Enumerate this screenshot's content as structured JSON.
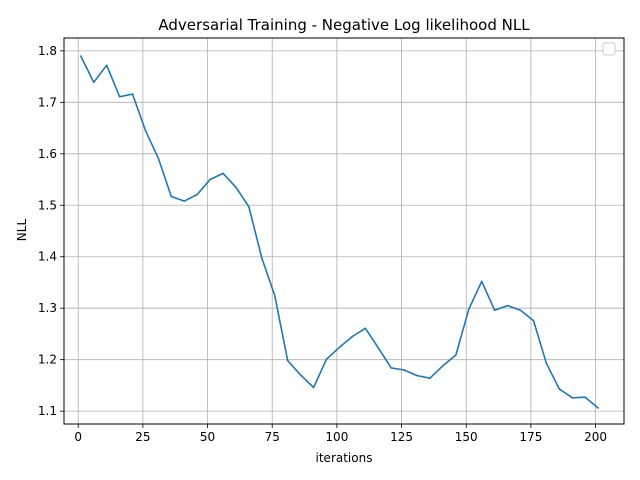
{
  "chart_data": {
    "type": "line",
    "title": "Adversarial Training - Negative Log likelihood NLL",
    "xlabel": "iterations",
    "ylabel": "NLL",
    "xlim": [
      -5.5,
      211
    ],
    "ylim": [
      1.075,
      1.825
    ],
    "xticks": [
      0,
      25,
      50,
      75,
      100,
      125,
      150,
      175,
      200
    ],
    "yticks": [
      1.1,
      1.2,
      1.3,
      1.4,
      1.5,
      1.6,
      1.7,
      1.8
    ],
    "xtick_labels": [
      "0",
      "25",
      "50",
      "75",
      "100",
      "125",
      "150",
      "175",
      "200"
    ],
    "ytick_labels": [
      "1.1",
      "1.2",
      "1.3",
      "1.4",
      "1.5",
      "1.6",
      "1.7",
      "1.8"
    ],
    "grid": true,
    "legend": "top-right (empty)",
    "series": [
      {
        "color": "#1f77b4",
        "x": [
          1,
          6,
          11,
          16,
          21,
          26,
          31,
          36,
          41,
          46,
          51,
          56,
          61,
          66,
          71,
          76,
          81,
          86,
          91,
          96,
          101,
          106,
          111,
          116,
          121,
          126,
          131,
          136,
          141,
          146,
          151,
          156,
          161,
          166,
          171,
          176,
          181,
          186,
          191,
          196,
          201
        ],
        "y": [
          1.79,
          1.739,
          1.772,
          1.711,
          1.716,
          1.645,
          1.591,
          1.517,
          1.508,
          1.521,
          1.55,
          1.562,
          1.535,
          1.497,
          1.397,
          1.324,
          1.198,
          1.17,
          1.146,
          1.201,
          1.224,
          1.245,
          1.261,
          1.223,
          1.184,
          1.18,
          1.169,
          1.164,
          1.188,
          1.209,
          1.298,
          1.352,
          1.296,
          1.305,
          1.296,
          1.276,
          1.193,
          1.143,
          1.126,
          1.127,
          1.106
        ]
      }
    ]
  }
}
